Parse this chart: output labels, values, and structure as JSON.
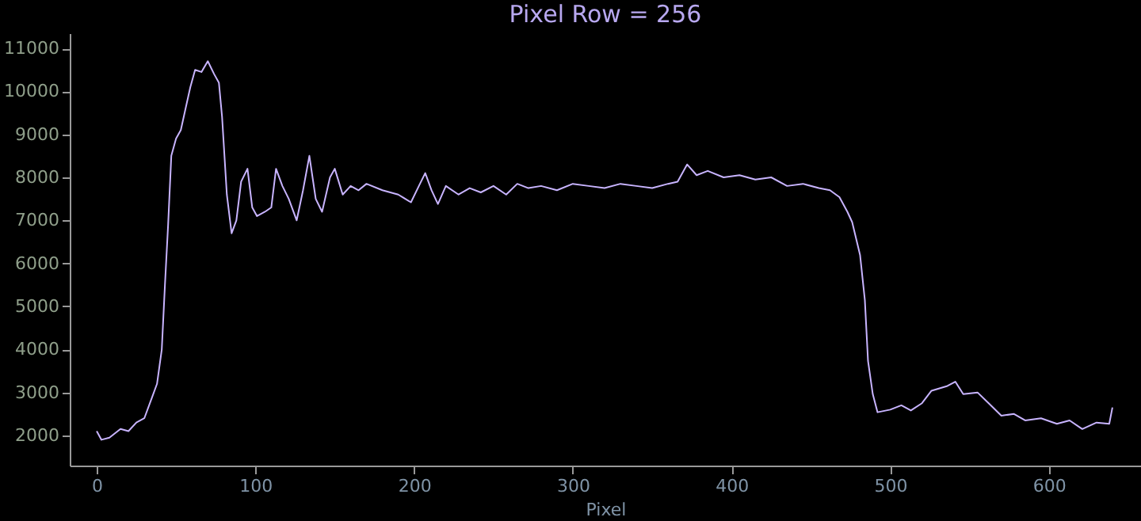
{
  "chart_data": {
    "type": "line",
    "title": "Pixel Row = 256",
    "xlabel": "Pixel",
    "x": [
      0,
      3,
      8,
      15,
      20,
      25,
      30,
      35,
      38,
      41,
      43,
      45,
      47,
      50,
      53,
      56,
      59,
      62,
      66,
      70,
      74,
      77,
      79,
      82,
      85,
      88,
      91,
      95,
      98,
      101,
      106,
      110,
      113,
      117,
      121,
      126,
      130,
      134,
      138,
      142,
      147,
      150,
      155,
      160,
      165,
      170,
      180,
      190,
      198,
      203,
      207,
      211,
      215,
      220,
      228,
      235,
      242,
      250,
      258,
      265,
      272,
      280,
      290,
      300,
      310,
      320,
      330,
      340,
      350,
      360,
      366,
      372,
      378,
      385,
      395,
      405,
      415,
      425,
      435,
      445,
      455,
      462,
      468,
      473,
      476,
      481,
      484,
      486,
      489,
      492,
      500,
      507,
      513,
      520,
      526,
      536,
      541,
      546,
      555,
      562,
      570,
      578,
      585,
      595,
      605,
      613,
      621,
      630,
      638,
      640
    ],
    "series": [
      {
        "color": "#c8b4ff",
        "values": [
          2100,
          1900,
          1950,
          2150,
          2100,
          2300,
          2400,
          2900,
          3200,
          4000,
          5500,
          6900,
          8500,
          8900,
          9100,
          9600,
          10100,
          10500,
          10450,
          10700,
          10400,
          10200,
          9400,
          7600,
          6700,
          7000,
          7900,
          8200,
          7300,
          7100,
          7200,
          7300,
          8200,
          7800,
          7500,
          7000,
          7700,
          8500,
          7500,
          7200,
          8000,
          8200,
          7600,
          7800,
          7700,
          7850,
          7700,
          7600,
          7420,
          7800,
          8100,
          7700,
          7380,
          7800,
          7600,
          7750,
          7650,
          7800,
          7600,
          7850,
          7750,
          7800,
          7700,
          7850,
          7800,
          7750,
          7850,
          7800,
          7750,
          7850,
          7900,
          8300,
          8050,
          8150,
          8000,
          8050,
          7950,
          8000,
          7800,
          7850,
          7750,
          7700,
          7540,
          7200,
          6960,
          6190,
          5150,
          3730,
          2960,
          2540,
          2600,
          2700,
          2580,
          2750,
          3040,
          3150,
          3250,
          2960,
          3000,
          2750,
          2460,
          2500,
          2350,
          2400,
          2270,
          2350,
          2150,
          2300,
          2270,
          2650
        ]
      }
    ],
    "xlim": [
      -17,
      658
    ],
    "ylim": [
      1300,
      11350
    ],
    "xticks": [
      0,
      100,
      200,
      300,
      400,
      500,
      600
    ],
    "yticks": [
      2000,
      3000,
      4000,
      5000,
      6000,
      7000,
      8000,
      9000,
      10000,
      11000
    ],
    "grid": false,
    "legend": false,
    "marker": "none",
    "line_style": "solid"
  }
}
